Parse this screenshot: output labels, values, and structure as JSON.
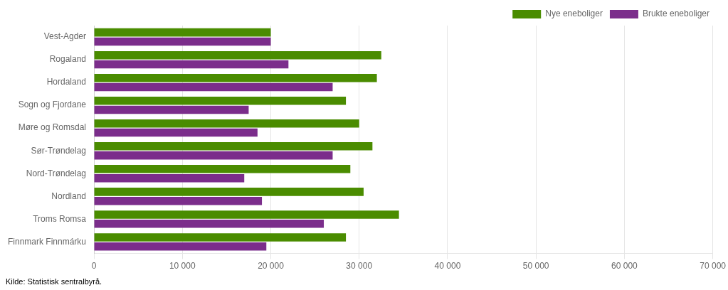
{
  "chart_data": {
    "type": "bar",
    "orientation": "horizontal",
    "categories": [
      "Vest-Agder",
      "Rogaland",
      "Hordaland",
      "Sogn og Fjordane",
      "Møre og Romsdal",
      "Sør-Trøndelag",
      "Nord-Trøndelag",
      "Nordland",
      "Troms Romsa",
      "Finnmark Finnmárku"
    ],
    "series": [
      {
        "name": "Nye eneboliger",
        "color": "#4a8c00",
        "values": [
          20000,
          32500,
          32000,
          28500,
          30000,
          31500,
          29000,
          30500,
          34500,
          28500
        ]
      },
      {
        "name": "Brukte eneboliger",
        "color": "#7b2d8b",
        "values": [
          20000,
          22000,
          27000,
          17500,
          18500,
          27000,
          17000,
          19000,
          26000,
          19500
        ]
      }
    ],
    "xlim": [
      0,
      70000
    ],
    "xticks": [
      0,
      {
        "value": 10000,
        "label": "10 000"
      },
      {
        "value": 20000,
        "label": "20 000"
      },
      {
        "value": 30000,
        "label": "30 000"
      },
      {
        "value": 40000,
        "label": "40 000"
      },
      {
        "value": 50000,
        "label": "50 000"
      },
      {
        "value": 60000,
        "label": "60 000"
      },
      {
        "value": 70000,
        "label": "70 000"
      }
    ],
    "grid": true,
    "legend": "upper right",
    "annotations": [
      "Kilde: Statistisk sentralbyrå."
    ]
  }
}
